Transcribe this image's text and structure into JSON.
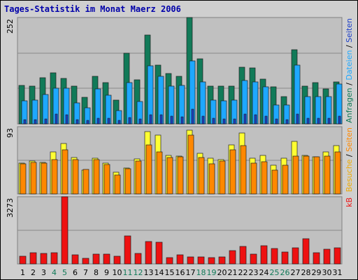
{
  "chart_data": {
    "type": "bar",
    "title": "Tages-Statistik im Monat Maerz 2006",
    "categories": [
      "1",
      "2",
      "3",
      "4",
      "5",
      "6",
      "7",
      "8",
      "9",
      "10",
      "11",
      "12",
      "13",
      "14",
      "15",
      "16",
      "17",
      "18",
      "19",
      "20",
      "21",
      "22",
      "23",
      "24",
      "25",
      "26",
      "27",
      "28",
      "29",
      "30",
      "31"
    ],
    "weekend_days": [
      4,
      5,
      11,
      12,
      18,
      19,
      25,
      26
    ],
    "colors": {
      "anfragen": "#117a58",
      "dateien": "#1ea8ff",
      "seiten": "#1c3fc8",
      "besuche": "#ffff33",
      "seiten_orange": "#ff8800",
      "kb": "#ee1111",
      "title": "#0000aa",
      "frame": "#cfcfcf",
      "plot_bg": "#c0c0c0",
      "weekend_label": "#117a58"
    },
    "panels": [
      {
        "id": "top",
        "ymax_label": "252",
        "ylim": [
          0,
          252
        ],
        "right_labels": [
          {
            "text": "Anfragen",
            "color": "#117a58"
          },
          {
            "text": " / ",
            "color": "#000000"
          },
          {
            "text": "Dateien",
            "color": "#1ea8ff"
          },
          {
            "text": " / ",
            "color": "#000000"
          },
          {
            "text": "Seiten",
            "color": "#1c3fc8"
          }
        ],
        "series": [
          {
            "key": "anfragen",
            "color": "#117a58",
            "values": [
              92,
              90,
              110,
              121,
              108,
              90,
              63,
              113,
              97,
              57,
              168,
              105,
              210,
              140,
              119,
              113,
              252,
              154,
              90,
              90,
              90,
              134,
              132,
              106,
              88,
              64,
              176,
              90,
              97,
              83,
              100
            ]
          },
          {
            "key": "dateien",
            "color": "#1ea8ff",
            "values": [
              55,
              57,
              70,
              85,
              84,
              50,
              38,
              83,
              68,
              32,
              98,
              53,
              138,
              112,
              90,
              92,
              150,
              100,
              56,
              55,
              57,
              103,
              100,
              88,
              44,
              44,
              140,
              65,
              65,
              64,
              95
            ]
          },
          {
            "key": "seiten",
            "color": "#1c3fc8",
            "values": [
              10,
              10,
              12,
              24,
              22,
              10,
              8,
              14,
              14,
              9,
              15,
              11,
              21,
              22,
              18,
              16,
              34,
              18,
              13,
              11,
              12,
              24,
              22,
              18,
              12,
              10,
              24,
              14,
              14,
              13,
              19
            ]
          }
        ]
      },
      {
        "id": "middle",
        "ymax_label": "93",
        "ylim": [
          0,
          93
        ],
        "right_labels": [
          {
            "text": "Besuche",
            "color": "#eeaa00"
          },
          {
            "text": " / ",
            "color": "#000000"
          },
          {
            "text": "Seiten",
            "color": "#ff8800"
          }
        ],
        "series": [
          {
            "key": "besuche",
            "color": "#ffff33",
            "values": [
              43,
              46,
              44,
              58,
              70,
              50,
              33,
              49,
              43,
              30,
              36,
              48,
              86,
              81,
              53,
              52,
              88,
              56,
              49,
              47,
              68,
              84,
              49,
              53,
              40,
              49,
              73,
              53,
              51,
              58,
              67
            ]
          },
          {
            "key": "seiten_orange",
            "color": "#ff8800",
            "values": [
              42,
              44,
              43,
              47,
              61,
              47,
              34,
              47,
              41,
              26,
              35,
              46,
              68,
              58,
              50,
              51,
              81,
              50,
              42,
              46,
              61,
              67,
              43,
              45,
              33,
              40,
              52,
              52,
              51,
              52,
              58
            ]
          }
        ]
      },
      {
        "id": "bottom",
        "ymax_label": "3273",
        "ylim": [
          0,
          3273
        ],
        "right_labels": [
          {
            "text": "kB",
            "color": "#ee1111"
          }
        ],
        "series": [
          {
            "key": "kb",
            "color": "#ee1111",
            "values": [
              370,
              560,
              500,
              560,
              3273,
              440,
              260,
              470,
              490,
              380,
              1360,
              520,
              1100,
              1050,
              320,
              430,
              340,
              330,
              310,
              350,
              640,
              860,
              480,
              880,
              750,
              570,
              800,
              1230,
              560,
              710,
              780
            ]
          }
        ]
      }
    ]
  }
}
